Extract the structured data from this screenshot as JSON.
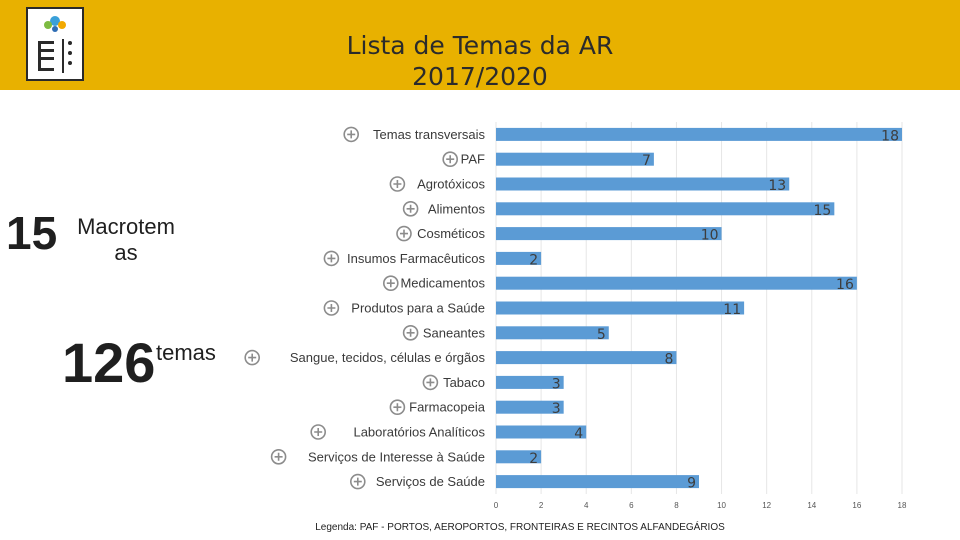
{
  "title": {
    "line1": "Lista de Temas da AR",
    "line2": "2017/2020"
  },
  "stats": [
    {
      "number": "15",
      "label": "Macrotem as"
    },
    {
      "number": "126",
      "label": "temas"
    }
  ],
  "legend_note": "Legenda: PAF - PORTOS, AEROPORTOS, FRONTEIRAS E RECINTOS ALFANDEGÁRIOS",
  "colors": {
    "header": "#e8b100",
    "bar": "#5b9bd5",
    "grid": "#e6e6e6",
    "icon": "#8c8c8c"
  },
  "icons": [
    "document-icon",
    "airplane-icon",
    "plant-icon",
    "food-seal-icon",
    "cosmetics-icon",
    "mortar-pestle-icon",
    "pill-icon",
    "bandage-icon",
    "spray-bottle-icon",
    "blood-bag-icon",
    "cigarette-icon",
    "mortar-bowl-icon",
    "lab-flask-icon",
    "first-aid-kit-icon",
    "doctor-icon"
  ],
  "chart_data": {
    "type": "bar",
    "orientation": "horizontal",
    "categories": [
      "Temas transversais",
      "PAF",
      "Agrotóxicos",
      "Alimentos",
      "Cosméticos",
      "Insumos Farmacêuticos",
      "Medicamentos",
      "Produtos para a Saúde",
      "Saneantes",
      "Sangue, tecidos, células e órgãos",
      "Tabaco",
      "Farmacopeia",
      "Laboratórios Analíticos",
      "Serviços de Interesse à Saúde",
      "Serviços de Saúde"
    ],
    "values": [
      18,
      7,
      13,
      15,
      10,
      2,
      16,
      11,
      5,
      8,
      3,
      3,
      4,
      2,
      9
    ],
    "xlim": [
      0,
      18
    ],
    "xticks": [
      0,
      2,
      4,
      6,
      8,
      10,
      12,
      14,
      16,
      18
    ],
    "grid": true
  }
}
